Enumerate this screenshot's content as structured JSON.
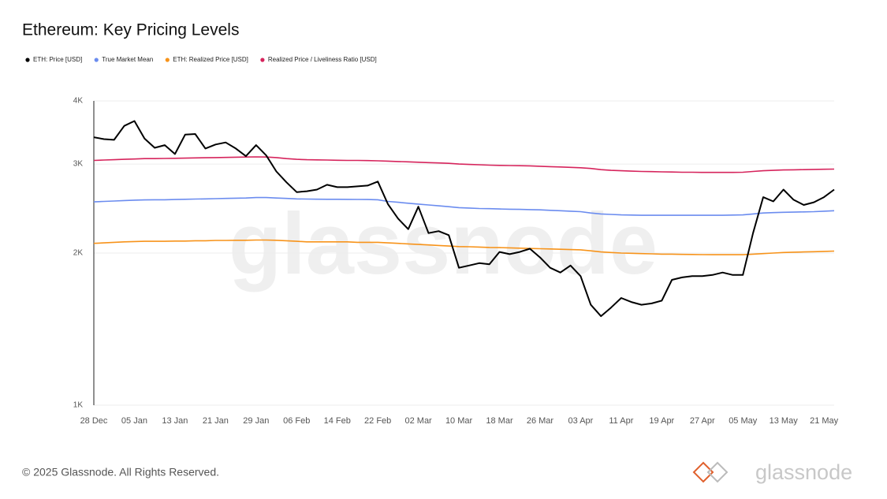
{
  "chart_data": {
    "type": "line",
    "title": "Ethereum: Key Pricing Levels",
    "watermark": "glassnode",
    "categories": [
      "28 Dec",
      null,
      null,
      null,
      "05 Jan",
      null,
      null,
      null,
      "13 Jan",
      null,
      null,
      null,
      "21 Jan",
      null,
      null,
      null,
      "29 Jan",
      null,
      null,
      null,
      "06 Feb",
      null,
      null,
      null,
      "14 Feb",
      null,
      null,
      null,
      "22 Feb",
      null,
      null,
      null,
      "02 Mar",
      null,
      null,
      null,
      "10 Mar",
      null,
      null,
      null,
      "18 Mar",
      null,
      null,
      null,
      "26 Mar",
      null,
      null,
      null,
      "03 Apr",
      null,
      null,
      null,
      "11 Apr",
      null,
      null,
      null,
      "19 Apr",
      null,
      null,
      null,
      "27 Apr",
      null,
      null,
      null,
      "05 May",
      null,
      null,
      null,
      "13 May",
      null,
      null,
      null,
      "21 May",
      null
    ],
    "series": [
      {
        "name": "ETH: Price [USD]",
        "color": "#000000",
        "values": [
          3390,
          3360,
          3350,
          3570,
          3650,
          3370,
          3230,
          3270,
          3140,
          3430,
          3440,
          3220,
          3280,
          3310,
          3220,
          3110,
          3270,
          3120,
          2900,
          2760,
          2640,
          2650,
          2670,
          2730,
          2700,
          2700,
          2710,
          2720,
          2770,
          2500,
          2340,
          2230,
          2470,
          2190,
          2210,
          2170,
          1870,
          1890,
          1910,
          1900,
          2010,
          1990,
          2010,
          2040,
          1960,
          1870,
          1830,
          1890,
          1800,
          1580,
          1500,
          1560,
          1630,
          1600,
          1580,
          1590,
          1610,
          1770,
          1790,
          1800,
          1800,
          1810,
          1830,
          1810,
          1810,
          2190,
          2580,
          2530,
          2670,
          2550,
          2490,
          2520,
          2580,
          2670
        ]
      },
      {
        "name": "True Market Mean",
        "color": "#6b8cef",
        "values": [
          2525,
          2530,
          2535,
          2540,
          2545,
          2548,
          2550,
          2550,
          2552,
          2555,
          2558,
          2560,
          2562,
          2565,
          2568,
          2570,
          2575,
          2575,
          2570,
          2565,
          2560,
          2558,
          2556,
          2555,
          2555,
          2554,
          2553,
          2552,
          2550,
          2530,
          2520,
          2510,
          2500,
          2490,
          2480,
          2470,
          2460,
          2455,
          2450,
          2448,
          2445,
          2442,
          2440,
          2438,
          2435,
          2430,
          2425,
          2420,
          2415,
          2400,
          2390,
          2385,
          2380,
          2378,
          2375,
          2375,
          2375,
          2375,
          2375,
          2375,
          2375,
          2375,
          2375,
          2378,
          2380,
          2390,
          2400,
          2405,
          2408,
          2410,
          2412,
          2415,
          2420,
          2425
        ]
      },
      {
        "name": "ETH: Realized Price [USD]",
        "color": "#f7931a",
        "values": [
          2090,
          2095,
          2100,
          2105,
          2108,
          2110,
          2110,
          2110,
          2112,
          2112,
          2115,
          2115,
          2118,
          2118,
          2120,
          2120,
          2122,
          2122,
          2120,
          2115,
          2110,
          2105,
          2105,
          2105,
          2105,
          2105,
          2100,
          2100,
          2100,
          2095,
          2090,
          2085,
          2080,
          2075,
          2070,
          2065,
          2060,
          2058,
          2055,
          2052,
          2050,
          2048,
          2045,
          2042,
          2040,
          2038,
          2035,
          2032,
          2030,
          2020,
          2010,
          2005,
          2000,
          1998,
          1995,
          1993,
          1990,
          1990,
          1988,
          1987,
          1986,
          1985,
          1985,
          1985,
          1985,
          1990,
          1995,
          2000,
          2005,
          2008,
          2010,
          2012,
          2015,
          2018
        ]
      },
      {
        "name": "Realized Price / Liveliness Ratio [USD]",
        "color": "#d6245c",
        "values": [
          3050,
          3055,
          3060,
          3065,
          3070,
          3075,
          3075,
          3078,
          3080,
          3082,
          3085,
          3088,
          3090,
          3092,
          3095,
          3098,
          3100,
          3098,
          3090,
          3075,
          3065,
          3060,
          3058,
          3055,
          3052,
          3050,
          3050,
          3048,
          3045,
          3040,
          3035,
          3030,
          3025,
          3020,
          3015,
          3010,
          3000,
          2995,
          2990,
          2985,
          2982,
          2980,
          2978,
          2975,
          2970,
          2965,
          2960,
          2955,
          2950,
          2940,
          2925,
          2915,
          2910,
          2905,
          2900,
          2898,
          2895,
          2893,
          2890,
          2890,
          2888,
          2888,
          2888,
          2888,
          2890,
          2900,
          2910,
          2915,
          2920,
          2922,
          2925,
          2928,
          2930,
          2932
        ]
      }
    ],
    "ylim": [
      1000,
      4000
    ],
    "log_scale": true,
    "grid": true,
    "legend": "top-left",
    "yticks": [
      {
        "value": 1000,
        "label": "1K"
      },
      {
        "value": 2000,
        "label": "2K"
      },
      {
        "value": 3000,
        "label": "3K"
      },
      {
        "value": 4000,
        "label": "4K"
      }
    ]
  },
  "footer": {
    "copyright": "© 2025 Glassnode. All Rights Reserved.",
    "logo": "glassnode"
  }
}
